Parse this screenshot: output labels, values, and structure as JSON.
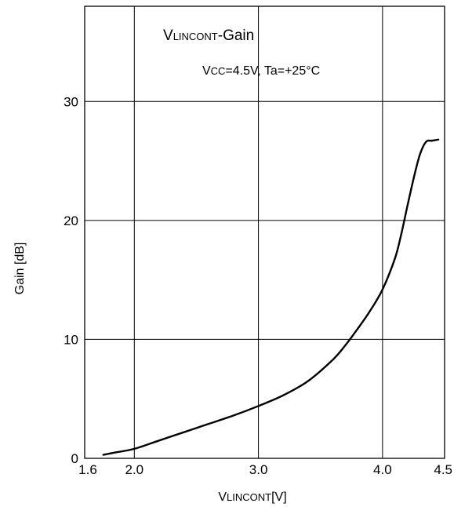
{
  "chart_data": {
    "type": "line",
    "title": {
      "v_prefix": "V",
      "v_subscript": "LINCONT",
      "suffix": "-Gain"
    },
    "conditions": {
      "v_prefix": "V",
      "v_subscript": "CC",
      "suffix": "=4.5V, Ta=+25°C"
    },
    "xlabel": {
      "v_prefix": "V",
      "v_subscript": "LINCONT",
      "suffix": "[V]"
    },
    "ylabel": "Gain [dB]",
    "xlim": [
      1.6,
      4.5
    ],
    "ylim": [
      0,
      38
    ],
    "x_ticks": [
      {
        "value": 1.6,
        "label": "1.6"
      },
      {
        "value": 2.0,
        "label": "2.0"
      },
      {
        "value": 3.0,
        "label": "3.0"
      },
      {
        "value": 4.0,
        "label": "4.0"
      },
      {
        "value": 4.5,
        "label": "4.5"
      }
    ],
    "y_ticks": [
      {
        "value": 0,
        "label": "0"
      },
      {
        "value": 10,
        "label": "10"
      },
      {
        "value": 20,
        "label": "20"
      },
      {
        "value": 30,
        "label": "30"
      }
    ],
    "grid_x": [
      2.0,
      3.0,
      4.0
    ],
    "grid_y": [
      10,
      20,
      30
    ],
    "grid": true,
    "series": [
      {
        "color": "#000000",
        "x": [
          1.75,
          1.85,
          2.0,
          2.2,
          2.4,
          2.6,
          2.8,
          3.0,
          3.2,
          3.4,
          3.6,
          3.7,
          3.8,
          3.9,
          4.0,
          4.1,
          4.15,
          4.2,
          4.25,
          4.3,
          4.35,
          4.4,
          4.45
        ],
        "y": [
          0.3,
          0.5,
          0.8,
          1.5,
          2.2,
          2.9,
          3.6,
          4.4,
          5.3,
          6.5,
          8.3,
          9.5,
          10.9,
          12.4,
          14.2,
          16.8,
          18.8,
          21.2,
          23.5,
          25.5,
          26.6,
          26.7,
          26.8
        ]
      }
    ]
  }
}
